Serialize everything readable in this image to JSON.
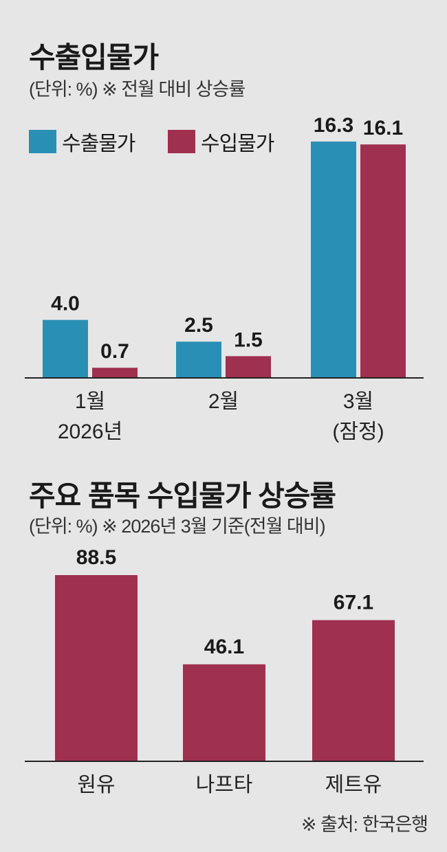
{
  "chart1": {
    "title": "수출입물가",
    "subtitle": "(단위: %) ※ 전월 대비 상승률",
    "legend": [
      {
        "name": "수출물가",
        "color": "#2a8fb5"
      },
      {
        "name": "수입물가",
        "color": "#a0304f"
      }
    ]
  },
  "chart2": {
    "title": "주요 품목 수입물가 상승률",
    "subtitle": "(단위: %) ※ 2026년 3월 기준(전월 대비)"
  },
  "source": "※ 출처: 한국은행",
  "chart_data": [
    {
      "type": "bar",
      "title": "수출입물가",
      "unit": "%",
      "categories": [
        "1월 2026년",
        "2월",
        "3월 (잠정)"
      ],
      "category_lines": [
        [
          "1월",
          "2026년"
        ],
        [
          "2월"
        ],
        [
          "3월",
          "(잠정)"
        ]
      ],
      "series": [
        {
          "name": "수출물가",
          "color": "#2a8fb5",
          "values": [
            4.0,
            2.5,
            16.3
          ]
        },
        {
          "name": "수입물가",
          "color": "#a0304f",
          "values": [
            0.7,
            1.5,
            16.1
          ]
        }
      ],
      "ylim": [
        0,
        16.3
      ],
      "legend": "top-left",
      "grid": false
    },
    {
      "type": "bar",
      "title": "주요 품목 수입물가 상승률",
      "unit": "%",
      "categories": [
        "원유",
        "나프타",
        "제트유"
      ],
      "series": [
        {
          "color": "#a0304f",
          "values": [
            88.5,
            46.1,
            67.1
          ]
        }
      ],
      "ylim": [
        0,
        88.5
      ],
      "grid": false
    }
  ]
}
